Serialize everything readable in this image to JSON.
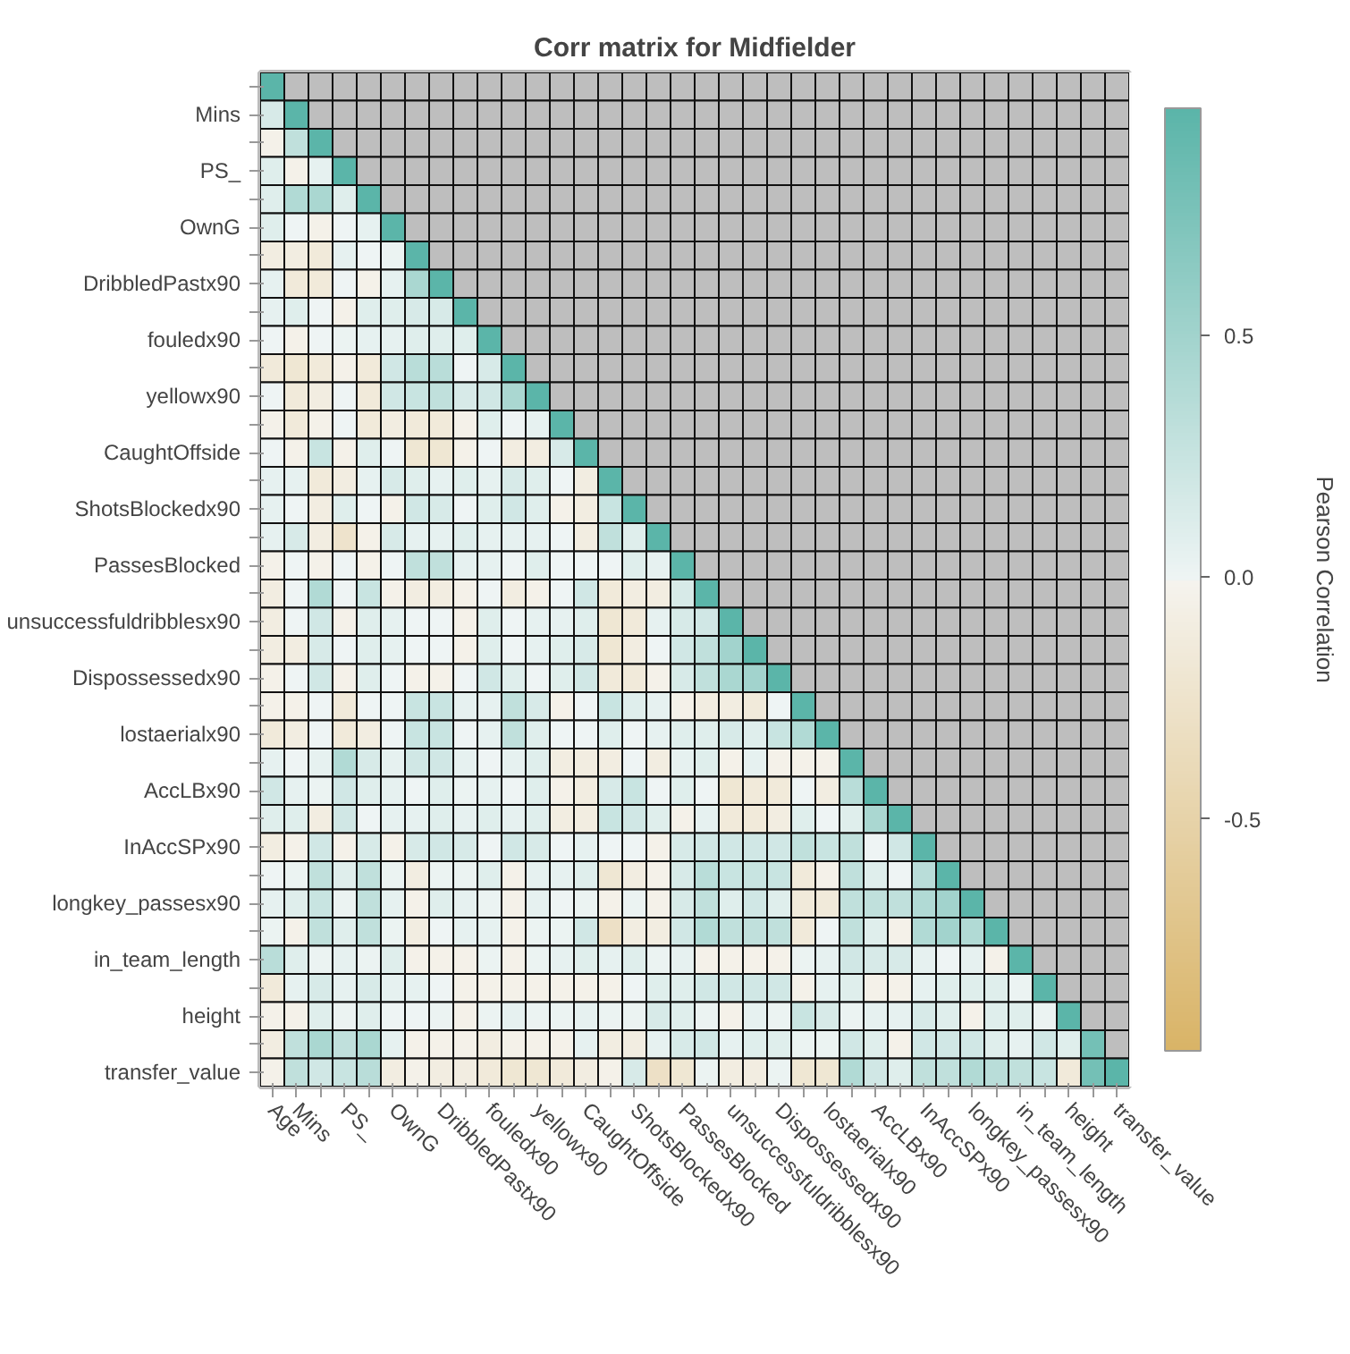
{
  "chart_data": {
    "type": "heatmap",
    "title": "Corr matrix for Midfielder",
    "clabel": "Pearson Correlation",
    "categories": [
      "Age",
      "Mins",
      null,
      "PS_",
      null,
      "OwnG",
      null,
      "DribbledPastx90",
      null,
      "fouledx90",
      null,
      "yellowx90",
      null,
      "CaughtOffside",
      null,
      "ShotsBlockedx90",
      null,
      "PassesBlocked",
      null,
      "unsuccessfuldribblesx90",
      null,
      "Dispossessedx90",
      null,
      "lostaerialx90",
      null,
      "AccLBx90",
      null,
      "InAccSPx90",
      null,
      "longkey_passesx90",
      null,
      "in_team_length",
      null,
      "height",
      null,
      "transfer_value"
    ],
    "y_categories": [
      null,
      "Mins",
      null,
      "PS_",
      null,
      "OwnG",
      null,
      "DribbledPastx90",
      null,
      "fouledx90",
      null,
      "yellowx90",
      null,
      "CaughtOffside",
      null,
      "ShotsBlockedx90",
      null,
      "PassesBlocked",
      null,
      "unsuccessfuldribblesx90",
      null,
      "Dispossessedx90",
      null,
      "lostaerialx90",
      null,
      "AccLBx90",
      null,
      "InAccSPx90",
      null,
      "longkey_passesx90",
      null,
      "in_team_length",
      null,
      "height",
      null,
      "transfer_value"
    ],
    "clim": [
      -0.98,
      0.97
    ],
    "cticks": [
      {
        "value": -0.5,
        "label": "-0.5"
      },
      {
        "value": 0,
        "label": "0.0"
      },
      {
        "value": 0.5,
        "label": "0.5"
      }
    ],
    "cells": [
      [
        1,
        null,
        null,
        null,
        null,
        null,
        null,
        null,
        null,
        null,
        null,
        null,
        null,
        null,
        null,
        null,
        null,
        null,
        null,
        null,
        null,
        null,
        null,
        null,
        null,
        null,
        null,
        null,
        null,
        null,
        null,
        null,
        null,
        null,
        null,
        null
      ],
      [
        0.15,
        1,
        null,
        null,
        null,
        null,
        null,
        null,
        null,
        null,
        null,
        null,
        null,
        null,
        null,
        null,
        null,
        null,
        null,
        null,
        null,
        null,
        null,
        null,
        null,
        null,
        null,
        null,
        null,
        null,
        null,
        null,
        null,
        null,
        null,
        null
      ],
      [
        -0.05,
        0.3,
        1,
        null,
        null,
        null,
        null,
        null,
        null,
        null,
        null,
        null,
        null,
        null,
        null,
        null,
        null,
        null,
        null,
        null,
        null,
        null,
        null,
        null,
        null,
        null,
        null,
        null,
        null,
        null,
        null,
        null,
        null,
        null,
        null,
        null
      ],
      [
        0.1,
        -0.05,
        0.05,
        1,
        null,
        null,
        null,
        null,
        null,
        null,
        null,
        null,
        null,
        null,
        null,
        null,
        null,
        null,
        null,
        null,
        null,
        null,
        null,
        null,
        null,
        null,
        null,
        null,
        null,
        null,
        null,
        null,
        null,
        null,
        null,
        null
      ],
      [
        0.1,
        0.4,
        0.45,
        0.1,
        1,
        null,
        null,
        null,
        null,
        null,
        null,
        null,
        null,
        null,
        null,
        null,
        null,
        null,
        null,
        null,
        null,
        null,
        null,
        null,
        null,
        null,
        null,
        null,
        null,
        null,
        null,
        null,
        null,
        null,
        null,
        null
      ],
      [
        0.1,
        0,
        -0.05,
        0,
        0.05,
        1,
        null,
        null,
        null,
        null,
        null,
        null,
        null,
        null,
        null,
        null,
        null,
        null,
        null,
        null,
        null,
        null,
        null,
        null,
        null,
        null,
        null,
        null,
        null,
        null,
        null,
        null,
        null,
        null,
        null,
        null
      ],
      [
        -0.1,
        -0.1,
        -0.15,
        0.05,
        0,
        0.02,
        1,
        null,
        null,
        null,
        null,
        null,
        null,
        null,
        null,
        null,
        null,
        null,
        null,
        null,
        null,
        null,
        null,
        null,
        null,
        null,
        null,
        null,
        null,
        null,
        null,
        null,
        null,
        null,
        null,
        null
      ],
      [
        0.05,
        -0.15,
        -0.15,
        0,
        -0.05,
        0.05,
        0.45,
        1,
        null,
        null,
        null,
        null,
        null,
        null,
        null,
        null,
        null,
        null,
        null,
        null,
        null,
        null,
        null,
        null,
        null,
        null,
        null,
        null,
        null,
        null,
        null,
        null,
        null,
        null,
        null,
        null
      ],
      [
        0.05,
        0.1,
        0,
        -0.05,
        0.1,
        0.1,
        0.15,
        0.15,
        1,
        null,
        null,
        null,
        null,
        null,
        null,
        null,
        null,
        null,
        null,
        null,
        null,
        null,
        null,
        null,
        null,
        null,
        null,
        null,
        null,
        null,
        null,
        null,
        null,
        null,
        null,
        null
      ],
      [
        0,
        -0.05,
        0,
        0.02,
        0.05,
        0.05,
        0.1,
        0.1,
        0.1,
        1,
        null,
        null,
        null,
        null,
        null,
        null,
        null,
        null,
        null,
        null,
        null,
        null,
        null,
        null,
        null,
        null,
        null,
        null,
        null,
        null,
        null,
        null,
        null,
        null,
        null,
        null
      ],
      [
        -0.15,
        -0.2,
        -0.15,
        -0.05,
        -0.15,
        0.2,
        0.35,
        0.35,
        0,
        0.15,
        1,
        null,
        null,
        null,
        null,
        null,
        null,
        null,
        null,
        null,
        null,
        null,
        null,
        null,
        null,
        null,
        null,
        null,
        null,
        null,
        null,
        null,
        null,
        null,
        null,
        null
      ],
      [
        0,
        -0.15,
        -0.1,
        0,
        -0.15,
        0.2,
        0.25,
        0.3,
        0.15,
        0.2,
        0.45,
        1,
        null,
        null,
        null,
        null,
        null,
        null,
        null,
        null,
        null,
        null,
        null,
        null,
        null,
        null,
        null,
        null,
        null,
        null,
        null,
        null,
        null,
        null,
        null,
        null
      ],
      [
        -0.05,
        -0.15,
        -0.05,
        0,
        -0.15,
        -0.1,
        -0.15,
        -0.15,
        -0.05,
        0.1,
        0,
        0.05,
        1,
        null,
        null,
        null,
        null,
        null,
        null,
        null,
        null,
        null,
        null,
        null,
        null,
        null,
        null,
        null,
        null,
        null,
        null,
        null,
        null,
        null,
        null,
        null
      ],
      [
        0,
        -0.05,
        0.25,
        -0.05,
        0.1,
        0,
        -0.2,
        -0.2,
        -0.05,
        0,
        -0.1,
        -0.1,
        0.15,
        1,
        null,
        null,
        null,
        null,
        null,
        null,
        null,
        null,
        null,
        null,
        null,
        null,
        null,
        null,
        null,
        null,
        null,
        null,
        null,
        null,
        null,
        null
      ],
      [
        0.05,
        0.05,
        -0.15,
        -0.1,
        0.05,
        0.15,
        0.1,
        0.05,
        0.1,
        0.05,
        0.15,
        0.1,
        0,
        -0.1,
        1,
        null,
        null,
        null,
        null,
        null,
        null,
        null,
        null,
        null,
        null,
        null,
        null,
        null,
        null,
        null,
        null,
        null,
        null,
        null,
        null,
        null
      ],
      [
        0.05,
        0,
        -0.1,
        0.1,
        0,
        -0.05,
        0.2,
        0.15,
        0,
        0.1,
        0.2,
        0.1,
        -0.05,
        -0.1,
        0.25,
        1,
        null,
        null,
        null,
        null,
        null,
        null,
        null,
        null,
        null,
        null,
        null,
        null,
        null,
        null,
        null,
        null,
        null,
        null,
        null,
        null
      ],
      [
        0.05,
        0.15,
        -0.1,
        -0.25,
        -0.05,
        0.15,
        0.05,
        0.05,
        0.1,
        0.05,
        0.05,
        0.05,
        0,
        -0.1,
        0.3,
        0.1,
        1,
        null,
        null,
        null,
        null,
        null,
        null,
        null,
        null,
        null,
        null,
        null,
        null,
        null,
        null,
        null,
        null,
        null,
        null,
        null
      ],
      [
        -0.05,
        0,
        -0.05,
        0,
        -0.05,
        0,
        0.3,
        0.3,
        0.05,
        0.05,
        0,
        0.1,
        0,
        0,
        0,
        0.1,
        0.05,
        1,
        null,
        null,
        null,
        null,
        null,
        null,
        null,
        null,
        null,
        null,
        null,
        null,
        null,
        null,
        null,
        null,
        null,
        null
      ],
      [
        -0.1,
        0,
        0.4,
        0,
        0.25,
        -0.05,
        -0.1,
        -0.1,
        -0.05,
        0,
        -0.1,
        -0.05,
        0,
        0.2,
        -0.15,
        -0.1,
        -0.1,
        0.15,
        1,
        null,
        null,
        null,
        null,
        null,
        null,
        null,
        null,
        null,
        null,
        null,
        null,
        null,
        null,
        null,
        null,
        null
      ],
      [
        -0.1,
        0,
        0.2,
        -0.05,
        0.1,
        0.05,
        0,
        0,
        -0.05,
        0.1,
        0,
        0.05,
        0.05,
        0.1,
        -0.2,
        -0.15,
        0.05,
        0.15,
        0.2,
        1,
        null,
        null,
        null,
        null,
        null,
        null,
        null,
        null,
        null,
        null,
        null,
        null,
        null,
        null,
        null,
        null
      ],
      [
        -0.1,
        -0.1,
        0.15,
        0,
        0.1,
        0.05,
        0,
        0,
        -0.05,
        0.1,
        0,
        0.05,
        0.1,
        0.15,
        -0.2,
        -0.1,
        0,
        0.2,
        0.3,
        0.5,
        1,
        null,
        null,
        null,
        null,
        null,
        null,
        null,
        null,
        null,
        null,
        null,
        null,
        null,
        null,
        null
      ],
      [
        -0.05,
        0,
        0.2,
        -0.05,
        0.1,
        0,
        -0.05,
        -0.05,
        0,
        0.2,
        0.1,
        0,
        0.1,
        0.2,
        -0.15,
        -0.15,
        -0.05,
        0.15,
        0.3,
        0.45,
        0.5,
        1,
        null,
        null,
        null,
        null,
        null,
        null,
        null,
        null,
        null,
        null,
        null,
        null,
        null,
        null
      ],
      [
        -0.05,
        -0.05,
        0,
        -0.15,
        0,
        0,
        0.25,
        0.25,
        0.05,
        0.05,
        0.3,
        0.15,
        -0.05,
        0,
        0.25,
        0.1,
        0.05,
        -0.05,
        -0.1,
        -0.1,
        -0.15,
        0,
        1,
        null,
        null,
        null,
        null,
        null,
        null,
        null,
        null,
        null,
        null,
        null,
        null,
        null
      ],
      [
        -0.15,
        -0.1,
        0,
        -0.15,
        -0.1,
        0,
        0.25,
        0.25,
        0,
        0.05,
        0.3,
        0.1,
        0,
        0,
        0.1,
        0,
        0.05,
        0.1,
        0.1,
        0.15,
        0.1,
        0.25,
        0.4,
        1,
        null,
        null,
        null,
        null,
        null,
        null,
        null,
        null,
        null,
        null,
        null,
        null
      ],
      [
        0.05,
        0,
        0.05,
        0.4,
        0.15,
        0.05,
        0.2,
        0.2,
        0.05,
        0,
        0.05,
        0.1,
        -0.1,
        -0.1,
        -0.1,
        0,
        -0.1,
        0.05,
        0.1,
        -0.05,
        0.05,
        -0.05,
        -0.05,
        -0.05,
        1,
        null,
        null,
        null,
        null,
        null,
        null,
        null,
        null,
        null,
        null,
        null
      ],
      [
        0.2,
        0.05,
        0.02,
        0.2,
        0.1,
        0.05,
        0,
        0.1,
        0.02,
        0.05,
        0,
        0.1,
        -0.05,
        -0.1,
        0.15,
        0.25,
        0,
        0.1,
        0,
        -0.2,
        -0.15,
        -0.15,
        0,
        -0.1,
        0.35,
        1,
        null,
        null,
        null,
        null,
        null,
        null,
        null,
        null,
        null,
        null
      ],
      [
        0.1,
        0.1,
        -0.1,
        0.2,
        0,
        0.05,
        0.05,
        0.1,
        0.05,
        0.1,
        0.05,
        0.1,
        -0.1,
        -0.1,
        0.25,
        0.2,
        0.1,
        -0.05,
        0.05,
        -0.15,
        -0.15,
        -0.1,
        0.1,
        0,
        0.1,
        0.45,
        1,
        null,
        null,
        null,
        null,
        null,
        null,
        null,
        null,
        null
      ],
      [
        -0.1,
        -0.05,
        0.2,
        -0.05,
        0.15,
        -0.05,
        0.15,
        0.2,
        0.15,
        0,
        0.2,
        0.15,
        0,
        0.05,
        0,
        0,
        -0.05,
        0.15,
        0.2,
        0.2,
        0.2,
        0.2,
        0.3,
        0.25,
        0.3,
        0,
        0.2,
        1,
        null,
        null,
        null,
        null,
        null,
        null,
        null,
        null
      ],
      [
        0,
        0.02,
        0.3,
        0.1,
        0.3,
        0.02,
        -0.1,
        0.02,
        0.02,
        0.1,
        -0.05,
        0.05,
        0.05,
        0.1,
        -0.2,
        -0.1,
        -0.05,
        0.15,
        0.35,
        0.25,
        0.25,
        0.25,
        -0.15,
        -0.05,
        0.3,
        0.1,
        0,
        0.35,
        1,
        null,
        null,
        null,
        null,
        null,
        null,
        null
      ],
      [
        0.05,
        0.1,
        0.25,
        0.02,
        0.3,
        0.05,
        -0.05,
        0.1,
        0.05,
        0.02,
        -0.05,
        0.05,
        0,
        0.02,
        -0.05,
        0.02,
        -0.05,
        0.15,
        0.3,
        0.1,
        0.2,
        0.1,
        -0.15,
        -0.15,
        0.3,
        0.3,
        0.3,
        0.4,
        0.5,
        1,
        null,
        null,
        null,
        null,
        null,
        null
      ],
      [
        0.02,
        -0.05,
        0.3,
        0.1,
        0.3,
        0.02,
        -0.1,
        0,
        0.05,
        0.05,
        -0.05,
        0.02,
        0.02,
        0.2,
        -0.3,
        -0.1,
        -0.1,
        0.2,
        0.4,
        0.3,
        0.3,
        0.3,
        -0.15,
        0,
        0.3,
        0.1,
        -0.05,
        0.4,
        0.5,
        0.4,
        1,
        null,
        null,
        null,
        null,
        null
      ],
      [
        0.35,
        0.1,
        0.02,
        0.05,
        0.02,
        0.1,
        -0.05,
        -0.05,
        -0.05,
        0.02,
        -0.05,
        0.02,
        0.05,
        0.1,
        0.05,
        0.1,
        0.02,
        0.05,
        -0.05,
        -0.05,
        -0.05,
        -0.05,
        0.02,
        0.05,
        0.2,
        0.15,
        0.15,
        0.05,
        0,
        0.05,
        -0.05,
        1,
        null,
        null,
        null,
        null
      ],
      [
        -0.15,
        0.05,
        0.15,
        0.05,
        0.15,
        0.05,
        0.05,
        0,
        -0.05,
        -0.05,
        -0.05,
        -0.05,
        -0.05,
        -0.05,
        -0.05,
        0,
        0.1,
        0.1,
        0.2,
        0.2,
        0.2,
        0.2,
        -0.05,
        0.05,
        0.1,
        -0.05,
        -0.05,
        0.05,
        0.1,
        0.1,
        0.1,
        0.02,
        1,
        null,
        null,
        null
      ],
      [
        -0.05,
        -0.05,
        0.1,
        0.02,
        0.1,
        0,
        0,
        0.02,
        -0.05,
        0.02,
        0.05,
        0.02,
        0.02,
        0.05,
        0.02,
        0.02,
        0.15,
        0.1,
        0.02,
        -0.05,
        0.05,
        0.02,
        0.25,
        0.15,
        0.02,
        0.05,
        0.05,
        0.15,
        0.1,
        -0.05,
        0.1,
        0.1,
        0.02,
        1,
        null,
        null
      ],
      [
        -0.1,
        0.3,
        0.45,
        0.3,
        0.45,
        0.05,
        -0.05,
        -0.05,
        -0.05,
        -0.1,
        -0.05,
        -0.05,
        -0.05,
        0.05,
        -0.1,
        -0.1,
        0.05,
        0.15,
        0.2,
        0.05,
        0.1,
        0.1,
        0.02,
        0.02,
        0.2,
        0.1,
        -0.05,
        0.2,
        0.2,
        0.2,
        0.1,
        0.05,
        0.2,
        0.1,
        0.8,
        null
      ],
      [
        -0.05,
        0.3,
        0.2,
        0.25,
        0.35,
        -0.1,
        -0.05,
        -0.1,
        -0.1,
        -0.15,
        -0.2,
        -0.2,
        -0.15,
        -0.1,
        -0.05,
        0.15,
        -0.3,
        -0.2,
        0.02,
        -0.1,
        -0.1,
        0.02,
        -0.2,
        -0.2,
        0.4,
        0.2,
        0.1,
        0.3,
        0.3,
        0.4,
        0.35,
        0.3,
        0.25,
        -0.15,
        0.8,
        1
      ]
    ]
  }
}
